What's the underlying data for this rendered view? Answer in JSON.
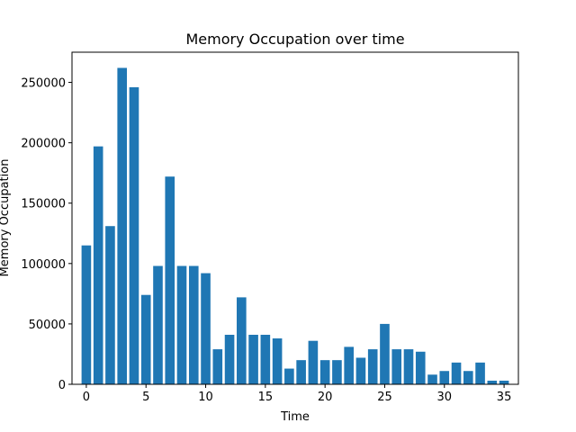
{
  "chart_data": {
    "type": "bar",
    "title": "Memory Occupation over time",
    "xlabel": "Time",
    "ylabel": "Memory Occupation",
    "bar_color": "#1f77b4",
    "xlim": [
      -1.2,
      36.2
    ],
    "ylim": [
      0,
      275000
    ],
    "xticks": [
      0,
      5,
      10,
      15,
      20,
      25,
      30,
      35
    ],
    "yticks": [
      0,
      50000,
      100000,
      150000,
      200000,
      250000
    ],
    "grid": false,
    "x": [
      0,
      1,
      2,
      3,
      4,
      5,
      6,
      7,
      8,
      9,
      10,
      11,
      12,
      13,
      14,
      15,
      16,
      17,
      18,
      19,
      20,
      21,
      22,
      23,
      24,
      25,
      26,
      27,
      28,
      29,
      30,
      31,
      32,
      33,
      34,
      35
    ],
    "values": [
      115000,
      197000,
      131000,
      262000,
      246000,
      74000,
      98000,
      172000,
      98000,
      98000,
      92000,
      29000,
      41000,
      72000,
      41000,
      41000,
      38000,
      13000,
      20000,
      36000,
      20000,
      20000,
      31000,
      22000,
      29000,
      50000,
      29000,
      29000,
      27000,
      8000,
      11000,
      18000,
      11000,
      18000,
      3000,
      3000
    ]
  }
}
